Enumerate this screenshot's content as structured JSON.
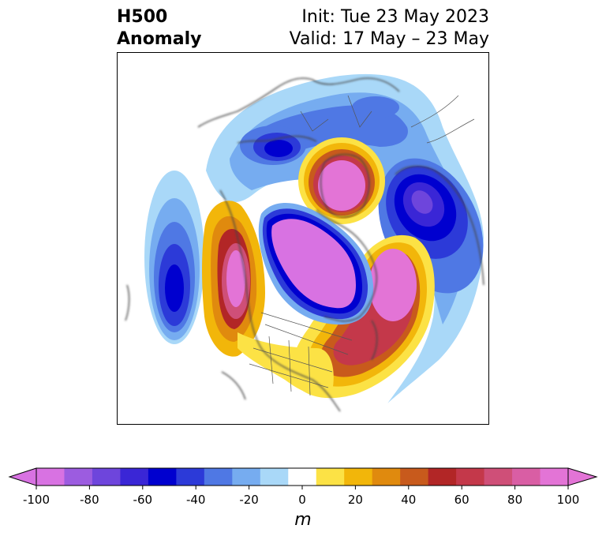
{
  "header": {
    "title_line1": "H500",
    "title_line2": "Anomaly",
    "init_label": "Init: Tue 23 May 2023",
    "valid_label": "Valid: 17 May – 23 May"
  },
  "colorbar": {
    "unit": "m",
    "min": -100,
    "max": 100,
    "step": 10,
    "tick_values": [
      -100,
      -80,
      -60,
      -40,
      -20,
      0,
      20,
      40,
      60,
      80,
      100
    ],
    "tick_labels": [
      "-100",
      "-80",
      "-60",
      "-40",
      "-20",
      "0",
      "20",
      "40",
      "60",
      "80",
      "100"
    ],
    "colors": [
      "#d872e2",
      "#9c5ce0",
      "#6e45dc",
      "#3a26d6",
      "#0000cf",
      "#2c3ad8",
      "#4f78e4",
      "#76acf0",
      "#a9d8f8",
      "#ffffff",
      "#fce245",
      "#f2b60a",
      "#e08a0e",
      "#c85a1c",
      "#b22626",
      "#c4384a",
      "#cf4f78",
      "#d95ea4",
      "#e374d6"
    ],
    "extend_low_color": "#d872e2",
    "extend_high_color": "#e374d6"
  }
}
